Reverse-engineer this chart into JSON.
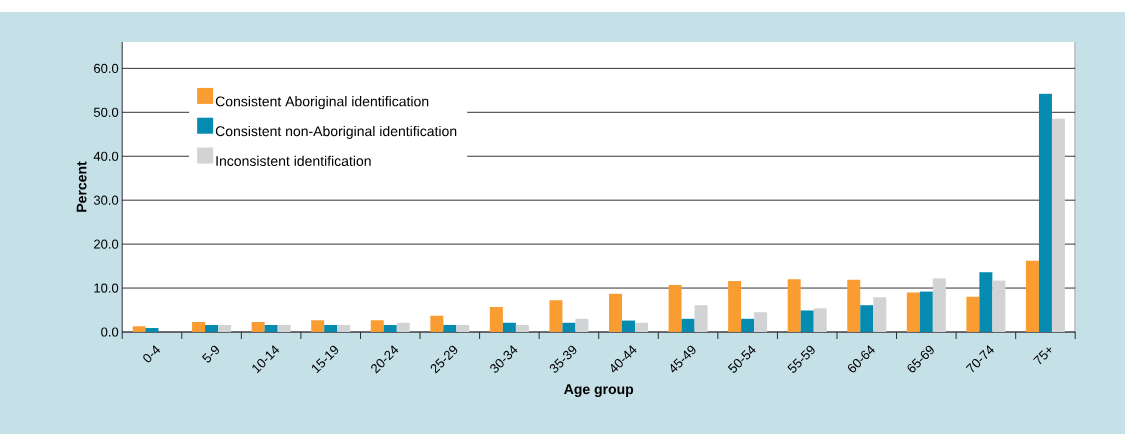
{
  "chart_data": {
    "type": "bar",
    "xlabel": "Age group",
    "ylabel": "Percent",
    "categories": [
      "0-4",
      "5-9",
      "10-14",
      "15-19",
      "20-24",
      "25-29",
      "30-34",
      "35-39",
      "40-44",
      "45-49",
      "50-54",
      "55-59",
      "60-64",
      "65-69",
      "70-74",
      "75+"
    ],
    "series": [
      {
        "name": "Consistent Aboriginal identification",
        "color": "#f99d33",
        "values": [
          1.3,
          2.3,
          2.3,
          2.7,
          2.7,
          3.7,
          5.7,
          7.2,
          8.7,
          10.7,
          11.6,
          12.0,
          11.9,
          9.0,
          8.0,
          16.2
        ]
      },
      {
        "name": "Consistent non-Aboriginal identification",
        "color": "#058ab0",
        "values": [
          0.9,
          1.6,
          1.6,
          1.6,
          1.6,
          1.6,
          2.1,
          2.1,
          2.6,
          3.0,
          3.0,
          4.9,
          6.1,
          9.2,
          13.6,
          54.2
        ]
      },
      {
        "name": "Inconsistent identification",
        "color": "#d2d3d5",
        "values": [
          0.0,
          1.6,
          1.6,
          1.6,
          2.1,
          1.6,
          1.6,
          3.0,
          2.1,
          6.1,
          4.5,
          5.4,
          7.9,
          12.2,
          11.7,
          48.6
        ]
      }
    ],
    "ylim": [
      0,
      66
    ],
    "yticks": [
      {
        "value": 0,
        "label": "0.0"
      },
      {
        "value": 10,
        "label": "10.0"
      },
      {
        "value": 20,
        "label": "20.0"
      },
      {
        "value": 30,
        "label": "30.0"
      },
      {
        "value": 40,
        "label": "40.0"
      },
      {
        "value": 50,
        "label": "50.0"
      },
      {
        "value": 60,
        "label": "60.0"
      }
    ],
    "grid": "y",
    "legend": "top left"
  }
}
